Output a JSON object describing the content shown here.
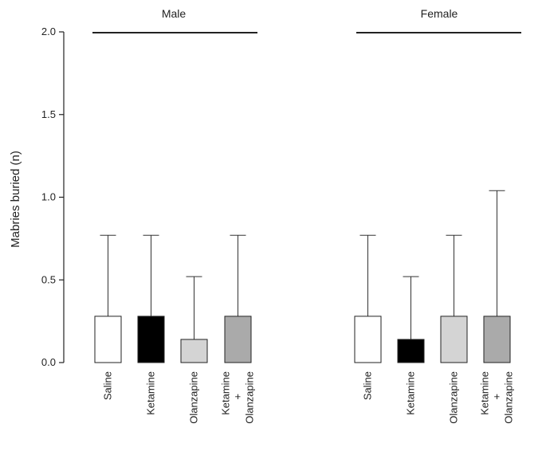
{
  "chart_data": {
    "type": "bar",
    "ylabel": "Mabries buried (n)",
    "xlabel": "",
    "ylim": [
      0,
      2.0
    ],
    "yticks": [
      "0.0",
      "0.5",
      "1.0",
      "1.5",
      "2.0"
    ],
    "grid": false,
    "groups": [
      {
        "name": "Male",
        "bars": [
          {
            "label": [
              "Saline"
            ],
            "value": 0.28,
            "error_upper": 0.77,
            "color": "#ffffff"
          },
          {
            "label": [
              "Ketamine"
            ],
            "value": 0.28,
            "error_upper": 0.77,
            "color": "#000000"
          },
          {
            "label": [
              "Olanzapine"
            ],
            "value": 0.14,
            "error_upper": 0.52,
            "color": "#d4d4d4"
          },
          {
            "label": [
              "Ketamine",
              "+",
              "Olanzapine"
            ],
            "value": 0.28,
            "error_upper": 0.77,
            "color": "#aaaaaa"
          }
        ]
      },
      {
        "name": "Female",
        "bars": [
          {
            "label": [
              "Saline"
            ],
            "value": 0.28,
            "error_upper": 0.77,
            "color": "#ffffff"
          },
          {
            "label": [
              "Ketamine"
            ],
            "value": 0.14,
            "error_upper": 0.52,
            "color": "#000000"
          },
          {
            "label": [
              "Olanzapine"
            ],
            "value": 0.28,
            "error_upper": 0.77,
            "color": "#d4d4d4"
          },
          {
            "label": [
              "Ketamine",
              "+",
              "Olanzapine"
            ],
            "value": 0.28,
            "error_upper": 1.04,
            "color": "#aaaaaa"
          }
        ]
      }
    ]
  }
}
